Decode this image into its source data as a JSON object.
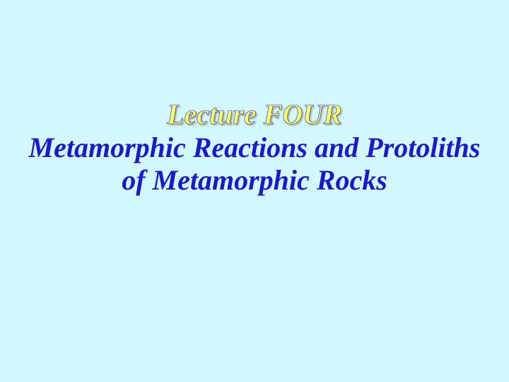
{
  "slide": {
    "background_color": "#d4f8ff",
    "title": "Lecture FOUR",
    "title_color": "#ffff66",
    "title_stroke_color": "#1a1aa0",
    "title_fontsize": 40,
    "subtitle": "Metamorphic Reactions and Protoliths of Metamorphic Rocks",
    "subtitle_color": "#1a1acc",
    "subtitle_fontsize": 40
  }
}
